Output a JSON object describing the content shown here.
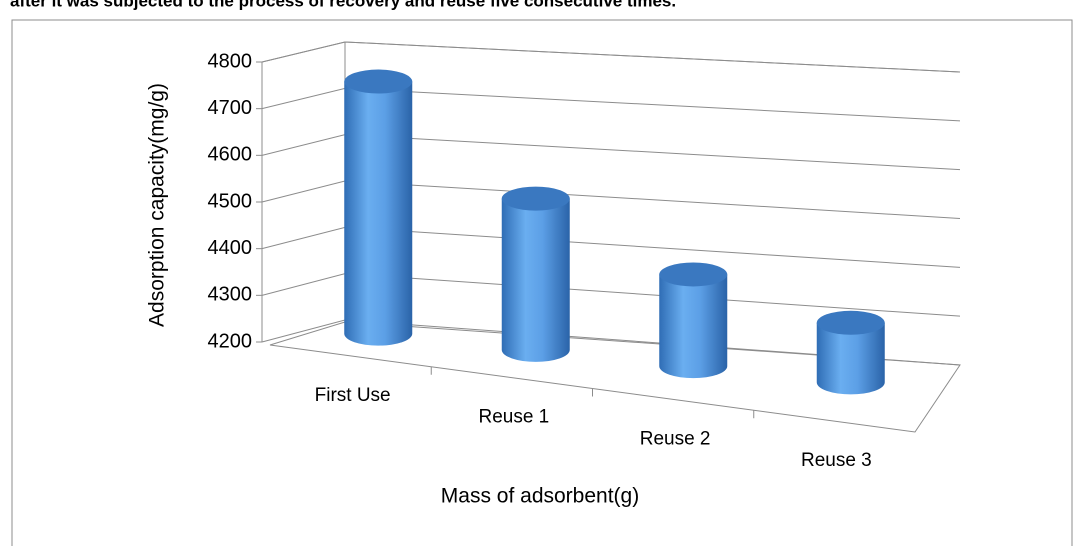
{
  "caption": "after it was subjected to the process of recovery and reuse five consecutive times.",
  "chart_data": {
    "type": "bar3d",
    "categories": [
      "First Use",
      "Reuse 1",
      "Reuse 2",
      "Reuse 3"
    ],
    "values": [
      4750,
      4530,
      4400,
      4330
    ],
    "color": "#4a8fd8",
    "ylim": [
      4200,
      4800
    ],
    "yticks": [
      4200,
      4300,
      4400,
      4500,
      4600,
      4700,
      4800
    ],
    "y_label": "Adsorption capacity(mg/g)",
    "x_label": "Mass of adsorbent(g)",
    "grid": true
  }
}
